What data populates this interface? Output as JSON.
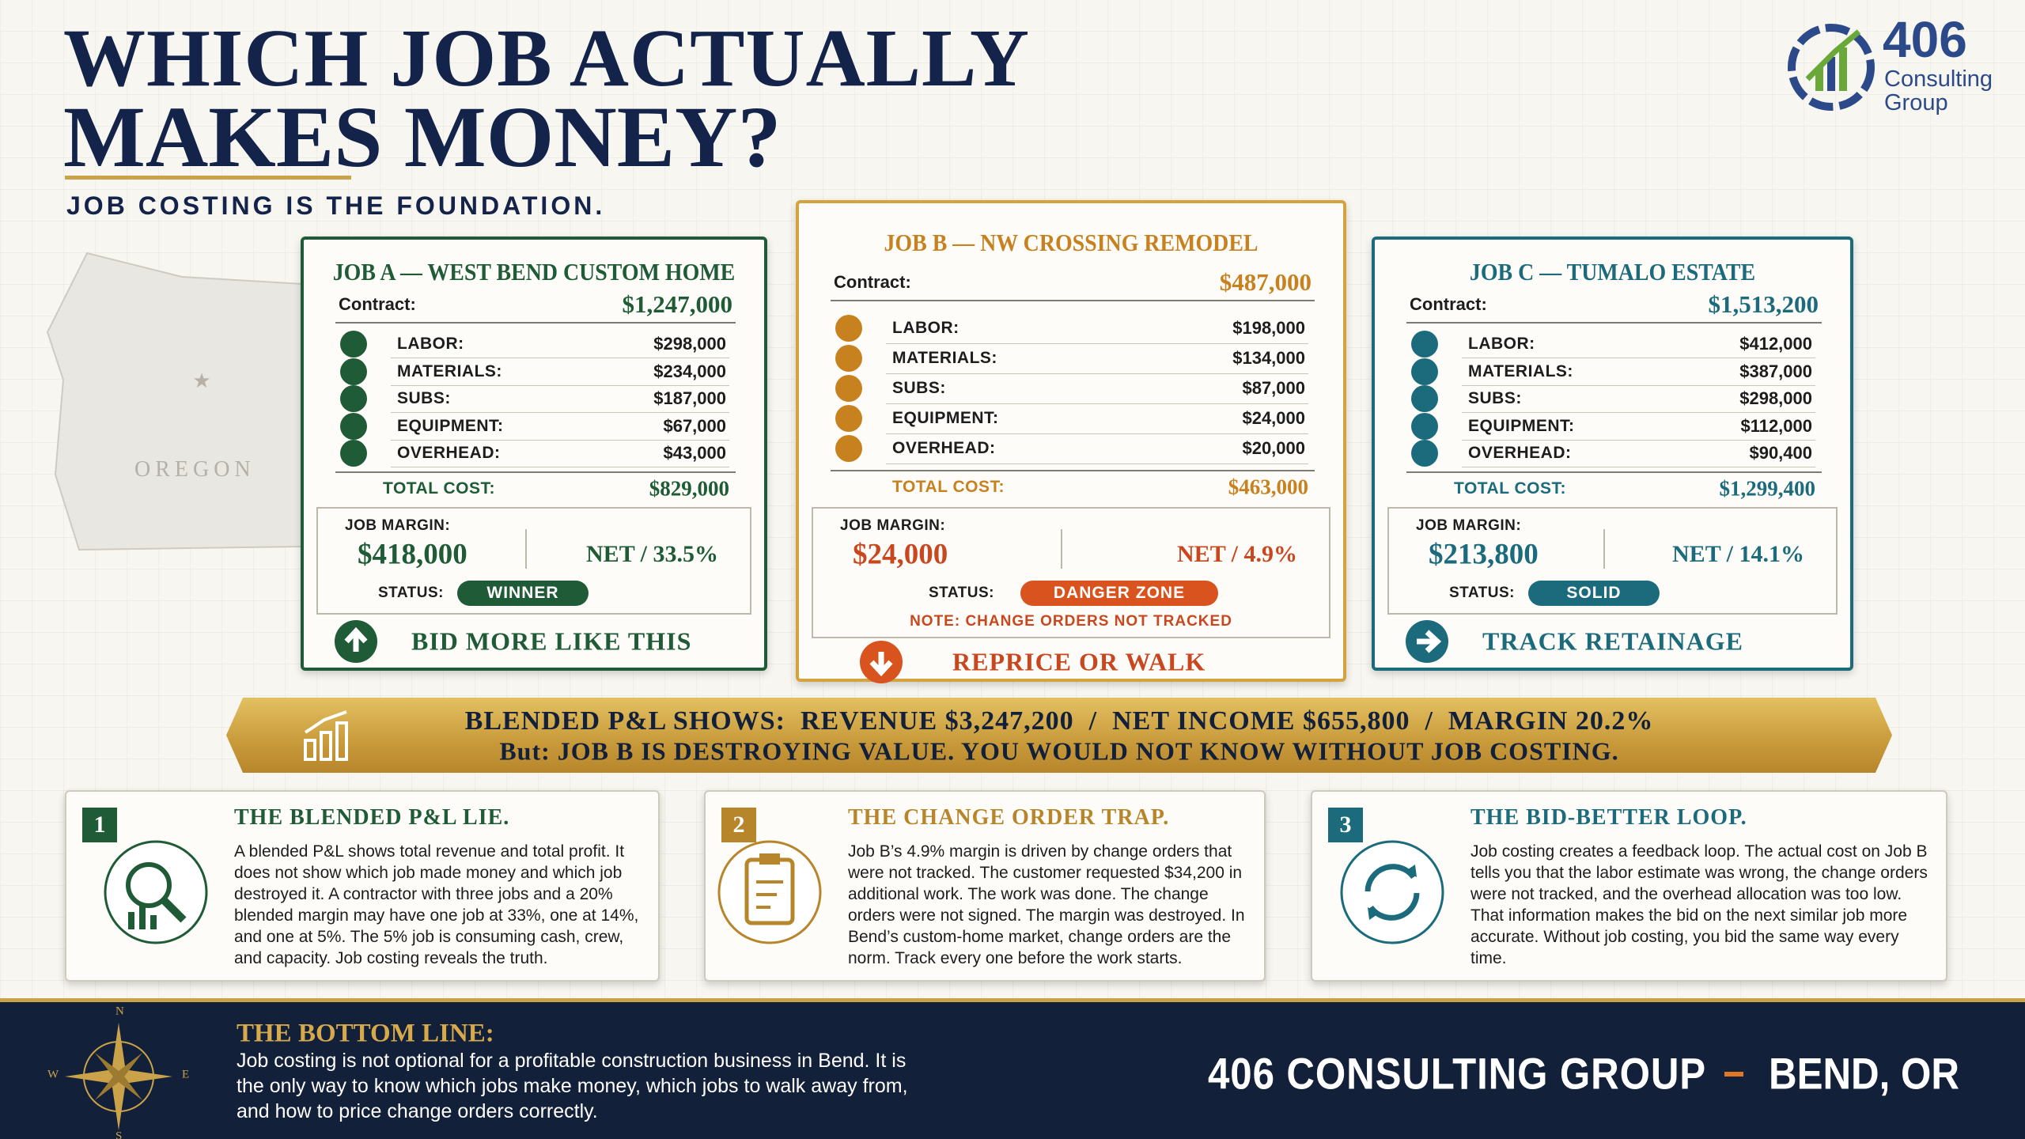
{
  "header": {
    "title_line1": "WHICH JOB ACTUALLY",
    "title_line2": "MAKES MONEY?",
    "subtitle": "JOB COSTING IS THE FOUNDATION."
  },
  "logo": {
    "number": "406",
    "name_line1": "Consulting",
    "name_line2": "Group"
  },
  "map_label": "OREGON",
  "jobs": [
    {
      "title": "JOB A — WEST BEND CUSTOM HOME",
      "contract_label": "Contract:",
      "contract": "$1,247,000",
      "costs": [
        {
          "label": "LABOR:",
          "value": "$298,000"
        },
        {
          "label": "MATERIALS:",
          "value": "$234,000"
        },
        {
          "label": "SUBS:",
          "value": "$187,000"
        },
        {
          "label": "EQUIPMENT:",
          "value": "$67,000"
        },
        {
          "label": "OVERHEAD:",
          "value": "$43,000"
        }
      ],
      "total_label": "TOTAL COST:",
      "total": "$829,000",
      "margin_label": "JOB MARGIN:",
      "margin": "$418,000",
      "net": "NET / 33.5%",
      "status_label": "STATUS:",
      "status": "WINNER",
      "action": "BID MORE LIKE THIS"
    },
    {
      "title": "JOB B — NW CROSSING REMODEL",
      "contract_label": "Contract:",
      "contract": "$487,000",
      "costs": [
        {
          "label": "LABOR:",
          "value": "$198,000"
        },
        {
          "label": "MATERIALS:",
          "value": "$134,000"
        },
        {
          "label": "SUBS:",
          "value": "$87,000"
        },
        {
          "label": "EQUIPMENT:",
          "value": "$24,000"
        },
        {
          "label": "OVERHEAD:",
          "value": "$20,000"
        }
      ],
      "total_label": "TOTAL COST:",
      "total": "$463,000",
      "margin_label": "JOB MARGIN:",
      "margin": "$24,000",
      "net": "NET / 4.9%",
      "status_label": "STATUS:",
      "status": "DANGER ZONE",
      "note": "NOTE: CHANGE ORDERS NOT TRACKED",
      "action": "REPRICE OR WALK"
    },
    {
      "title": "JOB C — TUMALO ESTATE",
      "contract_label": "Contract:",
      "contract": "$1,513,200",
      "costs": [
        {
          "label": "LABOR:",
          "value": "$412,000"
        },
        {
          "label": "MATERIALS:",
          "value": "$387,000"
        },
        {
          "label": "SUBS:",
          "value": "$298,000"
        },
        {
          "label": "EQUIPMENT:",
          "value": "$112,000"
        },
        {
          "label": "OVERHEAD:",
          "value": "$90,400"
        }
      ],
      "total_label": "TOTAL COST:",
      "total": "$1,299,400",
      "margin_label": "JOB MARGIN:",
      "margin": "$213,800",
      "net": "NET / 14.1%",
      "status_label": "STATUS:",
      "status": "SOLID",
      "action": "TRACK RETAINAGE"
    }
  ],
  "banner": {
    "line1": "BLENDED P&L SHOWS:  REVENUE $3,247,200  /  NET INCOME $655,800  /  MARGIN 20.2%",
    "line2": "But: JOB B IS DESTROYING VALUE. YOU WOULD NOT KNOW WITHOUT JOB COSTING."
  },
  "points": [
    {
      "number": "1",
      "title": "THE BLENDED P&L LIE.",
      "text": "A blended P&L shows total revenue and total profit. It does not show which job made money and which job destroyed it. A contractor with three jobs and a 20% blended margin may have one job at 33%, one at 14%, and one at 5%. The 5% job is consuming cash, crew, and capacity.  Job costing reveals the truth."
    },
    {
      "number": "2",
      "title": "THE CHANGE ORDER TRAP.",
      "text": "Job B’s 4.9% margin is driven by change orders that were not tracked.  The customer requested $34,200 in additional work. The work was done. The change orders were not signed. The margin was destroyed. In Bend’s custom-home market, change orders are the norm. Track every one before the work starts."
    },
    {
      "number": "3",
      "title": "THE BID-BETTER LOOP.",
      "text": "Job costing creates a feedback loop. The actual cost on Job B tells you that the labor estimate was wrong, the change orders were not tracked, and the overhead allocation was too low. That information makes the bid on the next similar job more accurate. Without job costing, you bid the same way every time."
    }
  ],
  "footer": {
    "compass": [
      "N",
      "E",
      "S",
      "W"
    ],
    "heading": "THE BOTTOM LINE:",
    "text": "Job costing is not optional for a profitable construction business in Bend. It is the only way to know which jobs make money, which jobs to walk away from, and how to price change orders correctly.",
    "brand": "406 CONSULTING GROUP",
    "location": "BEND, OR"
  }
}
